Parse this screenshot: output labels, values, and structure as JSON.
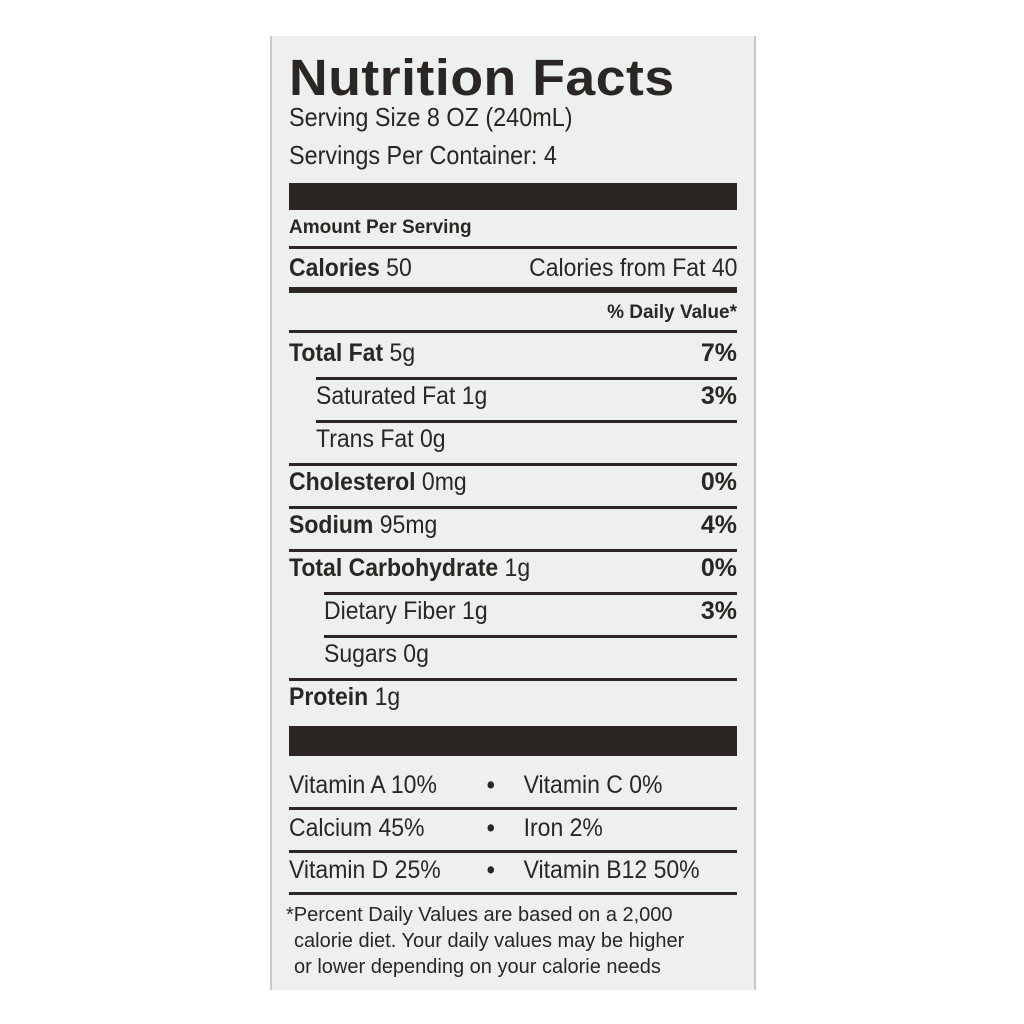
{
  "title": "Nutrition Facts",
  "serving_size": "Serving Size 8 OZ (240mL)",
  "servings_per_container": "Servings Per Container: 4",
  "amount_per_serving": "Amount Per Serving",
  "calories": {
    "label": "Calories",
    "value": "50",
    "from_fat": "Calories from Fat 40"
  },
  "daily_value_header": "% Daily Value*",
  "nutrients": [
    {
      "name": "Total Fat",
      "amount": "5g",
      "dv": "7%",
      "bold": true,
      "indent": false
    },
    {
      "name": "Saturated Fat",
      "amount": "1g",
      "dv": "3%",
      "bold": false,
      "indent": true
    },
    {
      "name": "Trans Fat",
      "amount": "0g",
      "dv": "",
      "bold": false,
      "indent": true
    },
    {
      "name": "Cholesterol",
      "amount": "0mg",
      "dv": "0%",
      "bold": true,
      "indent": false
    },
    {
      "name": "Sodium",
      "amount": "95mg",
      "dv": "4%",
      "bold": true,
      "indent": false
    },
    {
      "name": "Total Carbohydrate",
      "amount": "1g",
      "dv": "0%",
      "bold": true,
      "indent": false
    },
    {
      "name": "Dietary Fiber",
      "amount": "1g",
      "dv": "3%",
      "bold": false,
      "indent": true
    },
    {
      "name": "Sugars",
      "amount": "0g",
      "dv": "",
      "bold": false,
      "indent": true
    },
    {
      "name": "Protein",
      "amount": "1g",
      "dv": "",
      "bold": true,
      "indent": false
    }
  ],
  "vitamins": [
    [
      "Vitamin A 10%",
      "Vitamin C 0%"
    ],
    [
      "Calcium 45%",
      "Iron 2%"
    ],
    [
      "Vitamin D 25%",
      "Vitamin B12 50%"
    ]
  ],
  "separator": "•",
  "footnote": [
    "*Percent Daily Values are based on a 2,000",
    "calorie diet. Your daily values may be higher",
    "or lower depending on your calorie needs"
  ]
}
